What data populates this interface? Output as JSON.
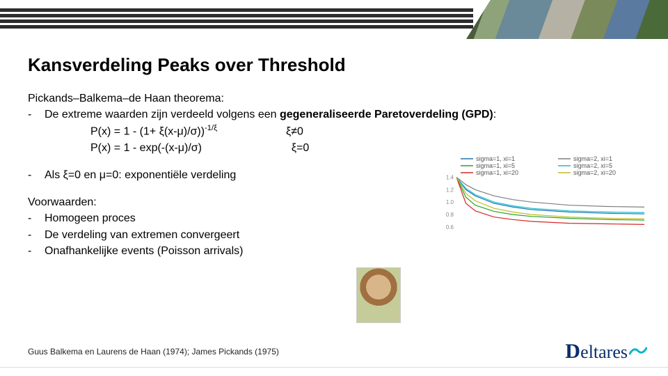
{
  "title": "Kansverdeling Peaks over Threshold",
  "theorem_line": "Pickands–Balkema–de Haan theorema:",
  "gpd_intro_a": "De extreme waarden zijn verdeeld volgens een ",
  "gpd_intro_b": "gegeneraliseerde Paretoverdeling (GPD)",
  "gpd_colon": ":",
  "eq1_lhs": "P(x) = 1 - (1+ ξ(x-μ)/σ))",
  "eq1_exp": "-1/ξ",
  "eq1_cond": "ξ≠0",
  "eq2_lhs": "P(x) = 1 - exp(-(x-μ)/σ)",
  "eq2_cond": "ξ=0",
  "bullet_exp": "Als ξ=0 en μ=0: exponentiële verdeling",
  "cond_header": "Voorwaarden:",
  "cond1": "Homogeen proces",
  "cond2": "De verdeling van extremen convergeert",
  "cond3": "Onafhankelijke events (Poisson arrivals)",
  "credit": "Guus Balkema en Laurens de Haan (1974); James Pickands (1975)",
  "logo_d": "D",
  "logo_rest": "eltares",
  "dash": "-",
  "chart": {
    "type": "line",
    "xlim": [
      0,
      10
    ],
    "ylim": [
      0.6,
      1.45
    ],
    "yticks": [
      0.6,
      0.8,
      1.0,
      1.2,
      1.4
    ],
    "background": "#ffffff",
    "grid": false,
    "series": [
      {
        "label": "sigma=1, xi=1",
        "color": "#1f77b4",
        "width": 1.2,
        "x": [
          0,
          0.5,
          1,
          2,
          3,
          4,
          6,
          8,
          10
        ],
        "y": [
          1.4,
          1.2,
          1.1,
          0.98,
          0.92,
          0.88,
          0.84,
          0.82,
          0.81
        ]
      },
      {
        "label": "sigma=1, xi=5",
        "color": "#2ca02c",
        "width": 1.2,
        "x": [
          0,
          0.5,
          1,
          2,
          3,
          4,
          6,
          8,
          10
        ],
        "y": [
          1.4,
          1.08,
          0.95,
          0.85,
          0.8,
          0.77,
          0.74,
          0.72,
          0.71
        ]
      },
      {
        "label": "sigma=1, xi=20",
        "color": "#d62728",
        "width": 1.2,
        "x": [
          0,
          0.5,
          1,
          2,
          3,
          4,
          6,
          8,
          10
        ],
        "y": [
          1.4,
          0.98,
          0.86,
          0.76,
          0.72,
          0.69,
          0.66,
          0.65,
          0.64
        ]
      },
      {
        "label": "sigma=2, xi=1",
        "color": "#7f7f7f",
        "width": 1.2,
        "x": [
          0,
          0.5,
          1,
          2,
          3,
          4,
          6,
          8,
          10
        ],
        "y": [
          1.4,
          1.28,
          1.2,
          1.1,
          1.04,
          1.0,
          0.95,
          0.93,
          0.92
        ]
      },
      {
        "label": "sigma=2, xi=5",
        "color": "#17becf",
        "width": 1.2,
        "x": [
          0,
          0.5,
          1,
          2,
          3,
          4,
          6,
          8,
          10
        ],
        "y": [
          1.4,
          1.22,
          1.12,
          1.0,
          0.94,
          0.9,
          0.86,
          0.84,
          0.83
        ]
      },
      {
        "label": "sigma=2, xi=20",
        "color": "#bcbd22",
        "width": 1.2,
        "x": [
          0,
          0.5,
          1,
          2,
          3,
          4,
          6,
          8,
          10
        ],
        "y": [
          1.4,
          1.14,
          1.02,
          0.9,
          0.84,
          0.8,
          0.76,
          0.74,
          0.73
        ]
      }
    ],
    "legend_cols": 2,
    "legend_pos": "top",
    "legend_fontsize": 9,
    "tick_fontsize": 8,
    "tick_color": "#888888"
  }
}
